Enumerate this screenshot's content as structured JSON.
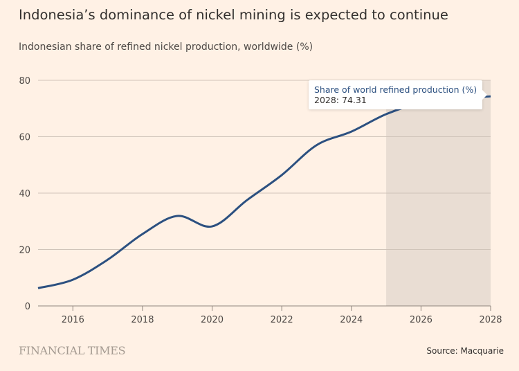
{
  "title": "Indonesia’s dominance of nickel mining is expected to continue",
  "subtitle": "Indonesian share of refined nickel production, worldwide (%)",
  "brand": "FINANCIAL TIMES",
  "source": "Source: Macquarie",
  "tooltip": {
    "series": "Share of world refined production (%)",
    "value": "2028: 74.31"
  },
  "chart_data": {
    "type": "line",
    "x": [
      2015,
      2016,
      2017,
      2018,
      2019,
      2020,
      2021,
      2022,
      2023,
      2024,
      2025,
      2026,
      2027,
      2028
    ],
    "series": [
      {
        "name": "Share of world refined production (%)",
        "values": [
          6.3,
          9.3,
          16.4,
          25.5,
          31.9,
          28.2,
          37.5,
          46.4,
          57,
          61.8,
          68,
          72,
          73.5,
          74.31
        ],
        "color": "#2c5080"
      }
    ],
    "xlim": [
      2015,
      2028
    ],
    "ylim": [
      0,
      80
    ],
    "xticks": [
      "2016",
      "2018",
      "2020",
      "2022",
      "2024",
      "2026",
      "2028"
    ],
    "yticks": [
      "0",
      "20",
      "40",
      "60",
      "80"
    ],
    "shaded_region": [
      2025,
      2028
    ],
    "shade_color": "#e9ddd3",
    "grid": true
  }
}
